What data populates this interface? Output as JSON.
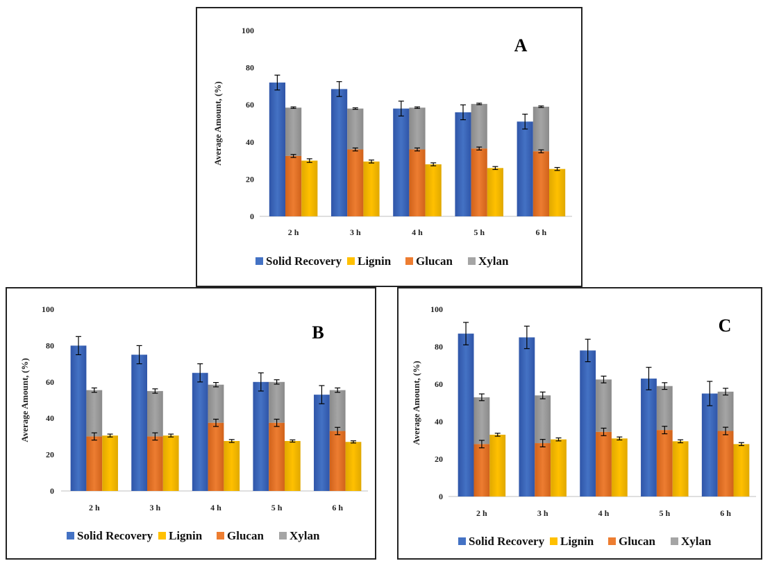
{
  "colors": {
    "solid": "#4472c4",
    "solid_dark": "#2f55a8",
    "lignin": "#ffc000",
    "lignin_dark": "#e0a800",
    "glucan": "#ed7d31",
    "glucan_dark": "#d0621a",
    "xylan": "#a5a5a5",
    "xylan_dark": "#8a8a8a"
  },
  "chart_data": [
    {
      "type": "bar",
      "panel_label": "A",
      "ylabel": "Average Amount, (%)",
      "ylim": [
        0,
        100
      ],
      "yticks": [
        0,
        20,
        40,
        60,
        80,
        100
      ],
      "categories": [
        "2 h",
        "3 h",
        "4 h",
        "5 h",
        "6 h"
      ],
      "legend": [
        "Solid Recovery",
        "Lignin",
        "Glucan",
        "Xylan"
      ],
      "series": [
        {
          "name": "Solid Recovery",
          "values": [
            72,
            68.5,
            58,
            56,
            51
          ],
          "errors": [
            4,
            4,
            4,
            4,
            4
          ]
        },
        {
          "name": "Glucan",
          "values": [
            32.5,
            36,
            36,
            36.5,
            35
          ],
          "errors": [
            0.8,
            0.8,
            0.8,
            0.8,
            0.8
          ]
        },
        {
          "name": "Xylan",
          "values": [
            58.5,
            58,
            58.5,
            60.5,
            59
          ],
          "errors": [
            0.4,
            0.4,
            0.4,
            0.4,
            0.4
          ]
        },
        {
          "name": "Lignin",
          "values": [
            30,
            29.5,
            28,
            26,
            25.5
          ],
          "errors": [
            1,
            0.8,
            0.8,
            0.8,
            0.8
          ]
        }
      ]
    },
    {
      "type": "bar",
      "panel_label": "B",
      "ylabel": "Average Amount, (%)",
      "ylim": [
        0,
        100
      ],
      "yticks": [
        0,
        20,
        40,
        60,
        80,
        100
      ],
      "categories": [
        "2 h",
        "3 h",
        "4 h",
        "5 h",
        "6 h"
      ],
      "legend": [
        "Solid Recovery",
        "Lignin",
        "Glucan",
        "Xylan"
      ],
      "series": [
        {
          "name": "Solid Recovery",
          "values": [
            80,
            75,
            65,
            60,
            53
          ],
          "errors": [
            5,
            5,
            5,
            5,
            5
          ]
        },
        {
          "name": "Glucan",
          "values": [
            30,
            30,
            37.5,
            37.5,
            33
          ],
          "errors": [
            2,
            2,
            2,
            2,
            2
          ]
        },
        {
          "name": "Xylan",
          "values": [
            55.5,
            55,
            58.5,
            60,
            55.5
          ],
          "errors": [
            1.2,
            1.2,
            1.2,
            1.2,
            1.2
          ]
        },
        {
          "name": "Lignin",
          "values": [
            30.5,
            30.5,
            27.5,
            27.5,
            27
          ],
          "errors": [
            0.8,
            0.8,
            0.8,
            0.6,
            0.6
          ]
        }
      ]
    },
    {
      "type": "bar",
      "panel_label": "C",
      "ylabel": "Average Amount, (%)",
      "ylim": [
        0,
        100
      ],
      "yticks": [
        0,
        20,
        40,
        60,
        80,
        100
      ],
      "categories": [
        "2 h",
        "3 h",
        "4 h",
        "5 h",
        "6 h"
      ],
      "legend": [
        "Solid Recovery",
        "Lignin",
        "Glucan",
        "Xylan"
      ],
      "series": [
        {
          "name": "Solid Recovery",
          "values": [
            87,
            85,
            78,
            63,
            55
          ],
          "errors": [
            6,
            6,
            6,
            6,
            6.5
          ]
        },
        {
          "name": "Glucan",
          "values": [
            28,
            28.5,
            34.5,
            35.5,
            35
          ],
          "errors": [
            2,
            2,
            2,
            2,
            2
          ]
        },
        {
          "name": "Xylan",
          "values": [
            53,
            54,
            62.5,
            59,
            56
          ],
          "errors": [
            1.8,
            1.8,
            1.8,
            1.8,
            1.8
          ]
        },
        {
          "name": "Lignin",
          "values": [
            33,
            30.5,
            31,
            29.5,
            28
          ],
          "errors": [
            0.8,
            0.8,
            0.8,
            0.8,
            0.8
          ]
        }
      ]
    }
  ]
}
